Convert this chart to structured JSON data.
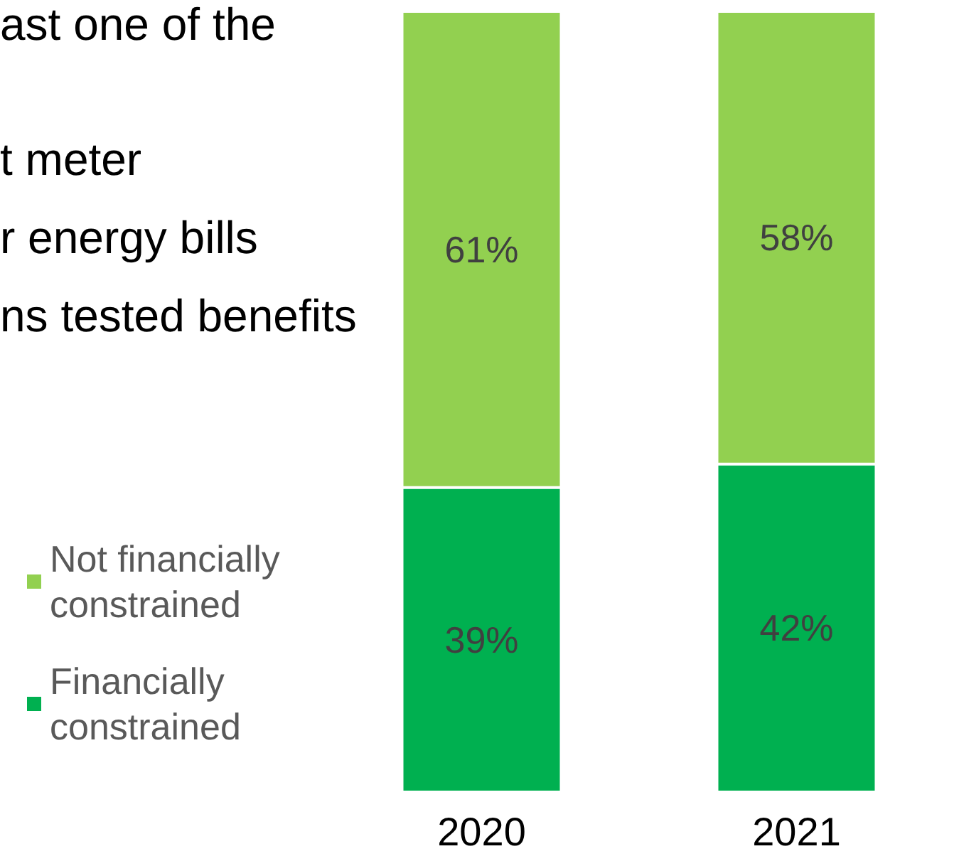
{
  "chart_data": {
    "type": "bar",
    "stacked": true,
    "legend": "left",
    "categories": [
      "2020",
      "2021"
    ],
    "series": [
      {
        "name": "Financially constrained",
        "color": "#00b050",
        "values": [
          39,
          42
        ],
        "value_labels": [
          "39%",
          "42%"
        ]
      },
      {
        "name": "Not financially constrained",
        "color": "#92d050",
        "values": [
          61,
          58
        ],
        "value_labels": [
          "61%",
          "58%"
        ]
      }
    ],
    "annotations": [
      "ast one of the",
      "t meter",
      "r energy bills",
      "ns tested benefits"
    ]
  }
}
